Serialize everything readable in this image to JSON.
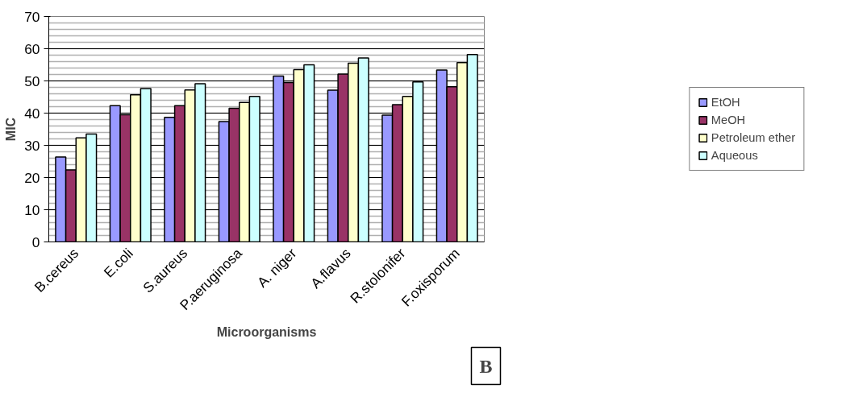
{
  "chart_data": {
    "type": "bar",
    "xlabel": "Microorganisms",
    "ylabel": "MIC",
    "categories": [
      "B.cereus",
      "E.coli",
      "S.aureus",
      "P.aeruginosa",
      "A. niger",
      "A.flavus",
      "R.stolonifer",
      "F.oxisporum"
    ],
    "series": [
      {
        "name": "EtOH",
        "color": "#9999ff",
        "values": [
          26.4,
          42.3,
          38.7,
          37.4,
          51.5,
          47.1,
          39.4,
          53.4
        ]
      },
      {
        "name": "MeOH",
        "color": "#993366",
        "values": [
          22.4,
          39.5,
          42.3,
          41.5,
          49.5,
          52.1,
          42.6,
          48.2
        ]
      },
      {
        "name": "Petroleum ether",
        "color": "#ffffcc",
        "values": [
          32.3,
          45.7,
          47.2,
          43.3,
          53.5,
          55.5,
          45.2,
          55.7
        ]
      },
      {
        "name": "Aqueous",
        "color": "#ccffff",
        "values": [
          33.5,
          47.6,
          49.1,
          45.2,
          55.0,
          57.1,
          49.7,
          58.2
        ]
      }
    ],
    "ylim": [
      0,
      70
    ],
    "yticks": [
      0,
      10,
      20,
      30,
      40,
      50,
      60,
      70
    ],
    "grid": "y",
    "legend": "right",
    "annotations": [
      "B"
    ]
  }
}
